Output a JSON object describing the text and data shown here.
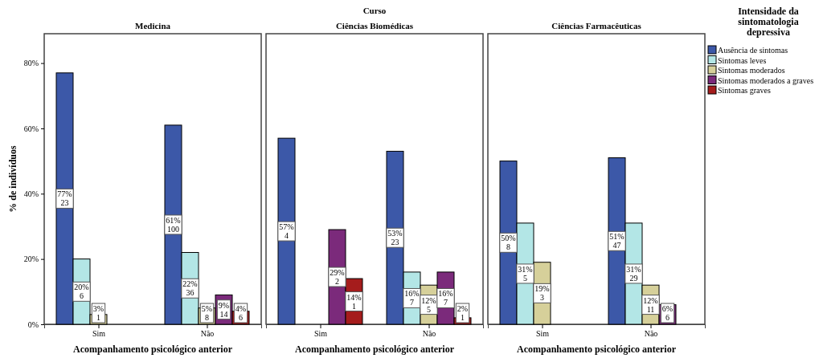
{
  "chart_data": [
    {
      "type": "bar",
      "title": "Medicina",
      "annotations": [
        "Curso"
      ],
      "xlabel": "Acompanhamento psicológico anterior",
      "ylabel": "% de indivíduos",
      "categories": [
        "Sim",
        "Não"
      ],
      "ylim": [
        0,
        89
      ],
      "yticks": [
        {
          "value": 0,
          "label": "0%"
        },
        {
          "value": 20,
          "label": "20%"
        },
        {
          "value": 40,
          "label": "40%"
        },
        {
          "value": 60,
          "label": "60%"
        },
        {
          "value": 80,
          "label": "80%"
        }
      ],
      "legend": false,
      "series": [
        {
          "color": "#3c58a8",
          "values": [
            77,
            61
          ],
          "value_labels": [
            "77%\n23",
            "61%\n100"
          ]
        },
        {
          "color": "#b3e6e6",
          "values": [
            20,
            22
          ],
          "value_labels": [
            "20%\n6",
            "22%\n36"
          ]
        },
        {
          "color": "#d6d09a",
          "values": [
            3,
            5
          ],
          "value_labels": [
            "3%\n1",
            "5%\n8"
          ]
        },
        {
          "color": "#7b2a7b",
          "values": [
            null,
            9
          ],
          "value_labels": [
            null,
            "9%\n14"
          ]
        },
        {
          "color": "#a51c1c",
          "values": [
            null,
            4
          ],
          "value_labels": [
            null,
            "4%\n6"
          ]
        }
      ]
    },
    {
      "type": "bar",
      "title": "Ciências Biomédicas",
      "xlabel": "Acompanhamento psicológico anterior",
      "categories": [
        "Sim",
        "Não"
      ],
      "ylim": [
        0,
        89
      ],
      "tick_labels": "x",
      "legend": false,
      "series": [
        {
          "color": "#3c58a8",
          "values": [
            57,
            53
          ],
          "value_labels": [
            "57%\n4",
            "53%\n23"
          ]
        },
        {
          "color": "#b3e6e6",
          "values": [
            null,
            16
          ],
          "value_labels": [
            null,
            "16%\n7"
          ]
        },
        {
          "color": "#d6d09a",
          "values": [
            null,
            12
          ],
          "value_labels": [
            null,
            "12%\n5"
          ]
        },
        {
          "color": "#7b2a7b",
          "values": [
            29,
            16
          ],
          "value_labels": [
            "29%\n2",
            "16%\n7"
          ]
        },
        {
          "color": "#a51c1c",
          "values": [
            14,
            2
          ],
          "value_labels": [
            "14%\n1",
            "2%\n1"
          ]
        }
      ]
    },
    {
      "type": "bar",
      "title": "Ciências Farmacêuticas",
      "xlabel": "Acompanhamento psicológico anterior",
      "categories": [
        "Sim",
        "Não"
      ],
      "ylim": [
        0,
        89
      ],
      "tick_labels": "x",
      "legend": "right",
      "legend_title": "Intensidade da sintomatologia depressiva",
      "series": [
        {
          "name": "Ausência de sintomas",
          "color": "#3c58a8",
          "values": [
            50,
            51
          ],
          "value_labels": [
            "50%\n8",
            "51%\n47"
          ]
        },
        {
          "name": "Sintomas leves",
          "color": "#b3e6e6",
          "values": [
            31,
            31
          ],
          "value_labels": [
            "31%\n5",
            "31%\n29"
          ]
        },
        {
          "name": "Sintomas moderados",
          "color": "#d6d09a",
          "values": [
            19,
            12
          ],
          "value_labels": [
            "19%\n3",
            "12%\n11"
          ]
        },
        {
          "name": "Sintomas moderados a graves",
          "color": "#7b2a7b",
          "values": [
            null,
            6
          ],
          "value_labels": [
            null,
            "6%\n6"
          ]
        },
        {
          "name": "Sintomas graves",
          "color": "#a51c1c",
          "values": [
            null,
            null
          ],
          "value_labels": [
            null,
            null
          ]
        }
      ]
    }
  ]
}
